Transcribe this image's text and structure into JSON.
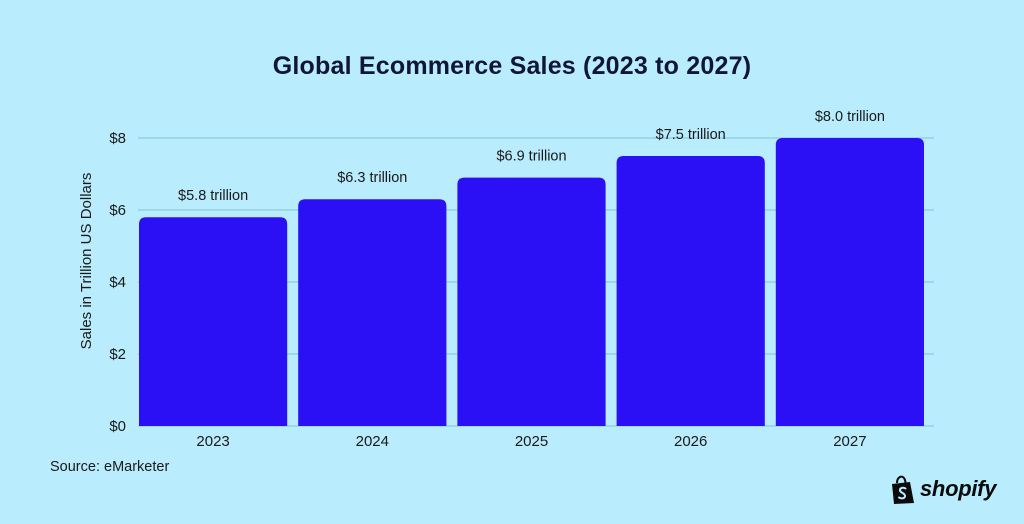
{
  "chart_data": {
    "type": "bar",
    "title": "Global Ecommerce Sales (2023 to 2027)",
    "xlabel": "",
    "ylabel": "Sales in Trillion US Dollars",
    "categories": [
      "2023",
      "2024",
      "2025",
      "2026",
      "2027"
    ],
    "values": [
      5.8,
      6.3,
      6.9,
      7.5,
      8.0
    ],
    "data_labels": [
      "$5.8 trillion",
      "$6.3 trillion",
      "$6.9 trillion",
      "$7.5 trillion",
      "$8.0 trillion"
    ],
    "ylim": [
      0,
      8
    ],
    "yticks": [
      0,
      2,
      4,
      6,
      8
    ],
    "ytick_labels": [
      "$0",
      "$2",
      "$4",
      "$6",
      "$8"
    ],
    "grid": true,
    "legend": "none",
    "bar_color": "#2b0ff5"
  },
  "source": "Source: eMarketer",
  "brand": {
    "name": "shopify",
    "icon": "shopify-bag-icon",
    "color": "#0b0b0b"
  },
  "colors": {
    "background": "#b9ecfd",
    "grid": "#7fc4dc",
    "bar": "#2b0ff5"
  }
}
